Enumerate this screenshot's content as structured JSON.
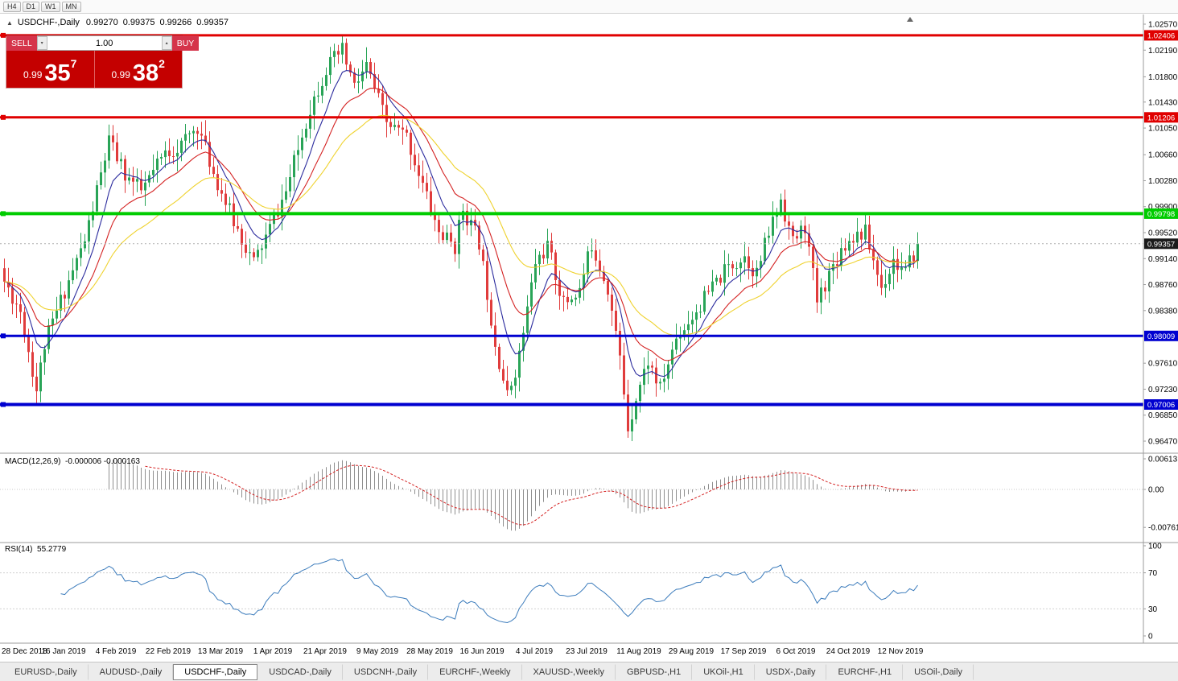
{
  "toolbar": {
    "timeframes": [
      "H4",
      "D1",
      "W1",
      "MN"
    ]
  },
  "title": {
    "symbol": "USDCHF-,Daily",
    "open": "0.99270",
    "high": "0.99375",
    "low": "0.99266",
    "close": "0.99357"
  },
  "trade_widget": {
    "sell_label": "SELL",
    "buy_label": "BUY",
    "volume": "1.00",
    "sell_prefix": "0.99",
    "sell_big": "35",
    "sell_sup": "7",
    "buy_prefix": "0.99",
    "buy_big": "38",
    "buy_sup": "2"
  },
  "indicator_labels": {
    "macd_name": "MACD(12,26,9)",
    "macd_values": "-0.000006 -0.000163",
    "rsi_name": "RSI(14)",
    "rsi_value": "55.2779"
  },
  "tabs": [
    {
      "label": "EURUSD-,Daily",
      "active": false
    },
    {
      "label": "AUDUSD-,Daily",
      "active": false
    },
    {
      "label": "USDCHF-,Daily",
      "active": true
    },
    {
      "label": "USDCAD-,Daily",
      "active": false
    },
    {
      "label": "USDCNH-,Daily",
      "active": false
    },
    {
      "label": "EURCHF-,Weekly",
      "active": false
    },
    {
      "label": "XAUUSD-,Weekly",
      "active": false
    },
    {
      "label": "GBPUSD-,H1",
      "active": false
    },
    {
      "label": "UKOil-,H1",
      "active": false
    },
    {
      "label": "USDX-,Daily",
      "active": false
    },
    {
      "label": "EURCHF-,H1",
      "active": false
    },
    {
      "label": "USOil-,Daily",
      "active": false
    }
  ],
  "chart_data": {
    "type": "candlestick",
    "symbol": "USDCHF-",
    "timeframe": "Daily",
    "y_range": [
      0.9647,
      1.0257
    ],
    "y_axis_ticks": [
      "1.02570",
      "1.02190",
      "1.01800",
      "1.01430",
      "1.01050",
      "1.00660",
      "1.00280",
      "0.99900",
      "0.99520",
      "0.99140",
      "0.98760",
      "0.98380",
      "0.97610",
      "0.97230",
      "0.96850",
      "0.96470"
    ],
    "x_axis_labels": [
      "28 Dec 2018",
      "16 Jan 2019",
      "4 Feb 2019",
      "22 Feb 2019",
      "13 Mar 2019",
      "1 Apr 2019",
      "21 Apr 2019",
      "9 May 2019",
      "28 May 2019",
      "16 Jun 2019",
      "4 Jul 2019",
      "23 Jul 2019",
      "11 Aug 2019",
      "29 Aug 2019",
      "17 Sep 2019",
      "6 Oct 2019",
      "24 Oct 2019",
      "12 Nov 2019"
    ],
    "candle_count": 228,
    "noise_seed": 11,
    "clamp": [
      0.9647,
      1.0242
    ],
    "current_price": 0.99357,
    "current_price_label": "0.99357",
    "up_color": "#29a457",
    "down_color": "#e03c3c",
    "close_waypoints": [
      [
        0,
        0.988
      ],
      [
        4,
        0.9838
      ],
      [
        8,
        0.9722
      ],
      [
        10,
        0.9788
      ],
      [
        15,
        0.9868
      ],
      [
        20,
        0.994
      ],
      [
        26,
        1.0085
      ],
      [
        30,
        1.0038
      ],
      [
        34,
        1.0012
      ],
      [
        40,
        1.0068
      ],
      [
        44,
        1.008
      ],
      [
        48,
        1.0108
      ],
      [
        52,
        1.004
      ],
      [
        57,
        0.9968
      ],
      [
        62,
        0.9908
      ],
      [
        66,
        0.9958
      ],
      [
        70,
        1.0012
      ],
      [
        76,
        1.0135
      ],
      [
        80,
        1.0192
      ],
      [
        84,
        1.0218
      ],
      [
        87,
        1.0165
      ],
      [
        90,
        1.0195
      ],
      [
        95,
        1.0112
      ],
      [
        100,
        1.0092
      ],
      [
        104,
        1.0022
      ],
      [
        108,
        0.9952
      ],
      [
        112,
        0.9932
      ],
      [
        114,
        0.9988
      ],
      [
        118,
        0.9938
      ],
      [
        122,
        0.9792
      ],
      [
        125,
        0.9712
      ],
      [
        128,
        0.9772
      ],
      [
        132,
        0.9908
      ],
      [
        135,
        0.9932
      ],
      [
        139,
        0.9848
      ],
      [
        143,
        0.9868
      ],
      [
        146,
        0.9936
      ],
      [
        150,
        0.9872
      ],
      [
        153,
        0.9768
      ],
      [
        155,
        0.9668
      ],
      [
        157,
        0.9712
      ],
      [
        160,
        0.9765
      ],
      [
        163,
        0.9722
      ],
      [
        167,
        0.9798
      ],
      [
        172,
        0.9838
      ],
      [
        176,
        0.9872
      ],
      [
        180,
        0.9902
      ],
      [
        184,
        0.9918
      ],
      [
        187,
        0.9892
      ],
      [
        190,
        0.9952
      ],
      [
        193,
        1.0002
      ],
      [
        196,
        0.9938
      ],
      [
        199,
        0.9962
      ],
      [
        202,
        0.9852
      ],
      [
        205,
        0.9892
      ],
      [
        208,
        0.9928
      ],
      [
        211,
        0.9948
      ],
      [
        214,
        0.9952
      ],
      [
        218,
        0.9872
      ],
      [
        221,
        0.9912
      ],
      [
        224,
        0.9892
      ],
      [
        227,
        0.99357
      ]
    ],
    "moving_averages": [
      {
        "period": 8,
        "color": "#2c2c9e"
      },
      {
        "period": 17,
        "color": "#d42222"
      },
      {
        "period": 34,
        "color": "#efd22e"
      }
    ],
    "levels": [
      {
        "name": "resistance-upper",
        "price": 1.02406,
        "label": "1.02406",
        "color": "#e00000",
        "width": 3
      },
      {
        "name": "resistance-lower",
        "price": 1.01206,
        "label": "1.01206",
        "color": "#e00000",
        "width": 3
      },
      {
        "name": "pivot",
        "price": 0.99798,
        "label": "0.99798",
        "color": "#00cc00",
        "width": 4
      },
      {
        "name": "support-upper",
        "price": 0.98009,
        "label": "0.98009",
        "color": "#0000d0",
        "width": 3
      },
      {
        "name": "support-lower",
        "price": 0.97006,
        "label": "0.97006",
        "color": "#0000d0",
        "width": 4
      }
    ],
    "macd": {
      "fast": 12,
      "slow": 26,
      "signal": 9,
      "axis_ticks": [
        "0.00613",
        "0.00",
        "-0.007612"
      ],
      "histogram_color": "#8f8f8f",
      "signal_color": "#d42222"
    },
    "rsi": {
      "period": 14,
      "axis_ticks": [
        "100",
        "70",
        "30",
        "0"
      ],
      "guide_levels": [
        70,
        30
      ],
      "color": "#3c7cbc"
    }
  }
}
